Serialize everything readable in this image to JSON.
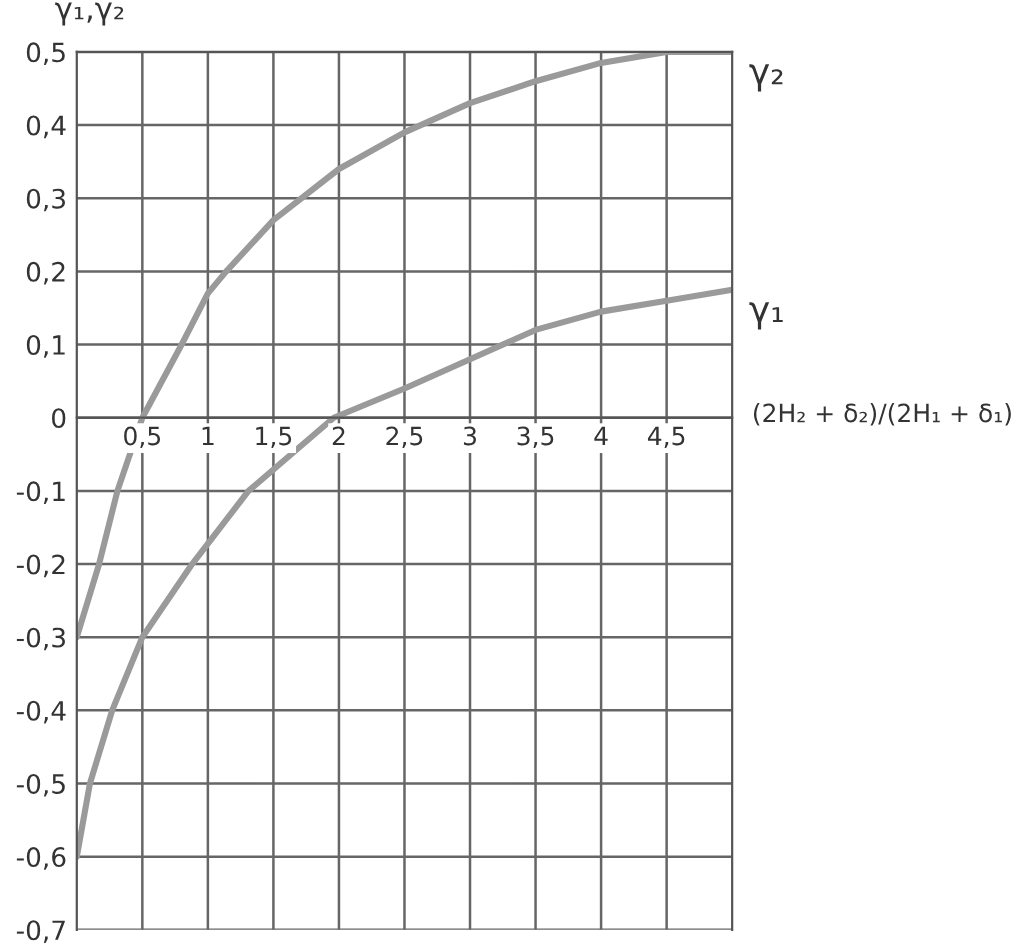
{
  "chart_data": {
    "type": "line",
    "ylabel": "γ₁,γ₂",
    "xlabel": "(2H₂ + δ₂)/(2H₁ + δ₁)",
    "series": [
      {
        "name": "γ₂",
        "color": "#9a9a9a",
        "x": [
          0,
          0.17,
          0.31,
          0.5,
          0.8,
          1.0,
          1.14,
          1.5,
          2.0,
          2.5,
          3.0,
          3.5,
          4.0,
          4.5,
          5.0
        ],
        "values": [
          -0.3,
          -0.2,
          -0.1,
          0,
          0.1,
          0.17,
          0.2,
          0.27,
          0.34,
          0.39,
          0.43,
          0.46,
          0.485,
          0.5,
          0.5
        ]
      },
      {
        "name": "γ₁",
        "color": "#9a9a9a",
        "x": [
          0,
          0.1,
          0.27,
          0.5,
          0.88,
          1.31,
          1.96,
          2.5,
          3.0,
          3.5,
          4.0,
          4.5,
          5.0
        ],
        "values": [
          -0.6,
          -0.5,
          -0.4,
          -0.3,
          -0.2,
          -0.1,
          0,
          0.04,
          0.08,
          0.12,
          0.145,
          0.16,
          0.175
        ]
      }
    ],
    "xlim": [
      0,
      5
    ],
    "ylim": [
      -0.7,
      0.5
    ],
    "xticks": [
      {
        "value": 0.5,
        "label": "0,5"
      },
      1,
      {
        "value": 1.5,
        "label": "1,5"
      },
      2,
      {
        "value": 2.5,
        "label": "2,5"
      },
      3,
      {
        "value": 3.5,
        "label": "3,5"
      },
      4,
      {
        "value": 4.5,
        "label": "4,5"
      }
    ],
    "yticks": [
      {
        "value": -0.7,
        "label": "-0,7"
      },
      {
        "value": -0.6,
        "label": "-0,6"
      },
      {
        "value": -0.5,
        "label": "-0,5"
      },
      {
        "value": -0.4,
        "label": "-0,4"
      },
      {
        "value": -0.3,
        "label": "-0,3"
      },
      {
        "value": -0.2,
        "label": "-0,2"
      },
      {
        "value": -0.1,
        "label": "-0,1"
      },
      0,
      {
        "value": 0.1,
        "label": "0,1"
      },
      {
        "value": 0.2,
        "label": "0,2"
      },
      {
        "value": 0.3,
        "label": "0,3"
      },
      {
        "value": 0.4,
        "label": "0,4"
      },
      {
        "value": 0.5,
        "label": "0,5"
      }
    ],
    "grid": true,
    "legend": false,
    "marker": "none",
    "line_style": "solid"
  }
}
